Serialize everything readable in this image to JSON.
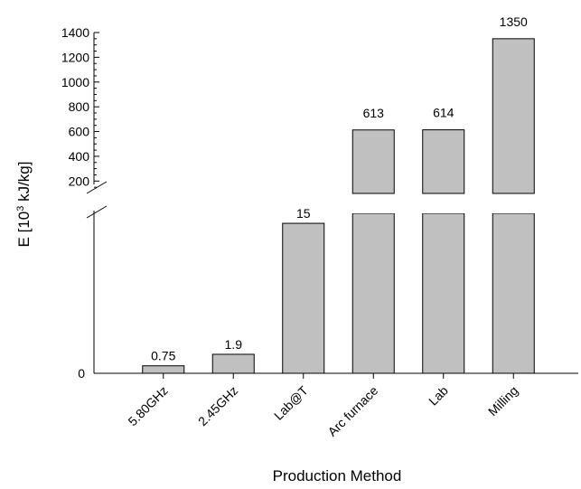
{
  "chart_data": {
    "type": "bar",
    "categories": [
      "5.80GHz",
      "2.45GHz",
      "Lab@T",
      "Arc furnace",
      "Lab",
      "Milling"
    ],
    "values": [
      0.75,
      1.9,
      15,
      613,
      614,
      1350
    ],
    "data_labels": [
      "0.75",
      "1.9",
      "15",
      "613",
      "614",
      "1350"
    ],
    "xlabel": "Production Method",
    "ylabel": "E [10",
    "ylabel_sup": "3",
    "ylabel_tail": " kJ/kg]",
    "lower_axis": {
      "ylim": [
        0,
        16
      ],
      "ticks": [
        "0"
      ]
    },
    "upper_axis": {
      "ylim": [
        100,
        1400
      ],
      "ticks": [
        "200",
        "400",
        "600",
        "800",
        "1000",
        "1200",
        "1400"
      ]
    },
    "axis_break": true,
    "bar_color": "#c0c0c0",
    "bar_stroke": "#000000",
    "grid": false,
    "legend": "none"
  }
}
